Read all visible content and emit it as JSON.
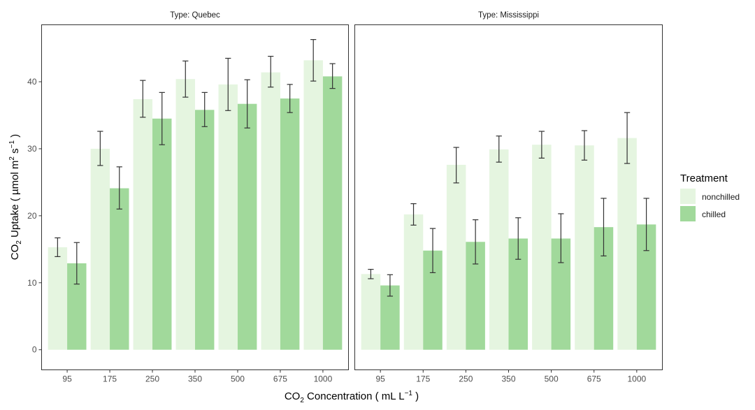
{
  "chart_data": {
    "type": "bar",
    "facets": [
      {
        "strip_label": "Type: Quebec",
        "categories": [
          "95",
          "175",
          "250",
          "350",
          "500",
          "675",
          "1000"
        ],
        "series": [
          {
            "name": "nonchilled",
            "values": [
              15.3,
              30.0,
              37.4,
              40.4,
              39.6,
              41.4,
              43.2
            ],
            "error_low": [
              13.9,
              27.5,
              34.7,
              37.7,
              35.7,
              39.2,
              40.1
            ],
            "error_high": [
              16.7,
              32.6,
              40.2,
              43.1,
              43.5,
              43.8,
              46.3
            ]
          },
          {
            "name": "chilled",
            "values": [
              12.9,
              24.1,
              34.5,
              35.8,
              36.7,
              37.5,
              40.8
            ],
            "error_low": [
              9.8,
              21.0,
              30.6,
              33.3,
              33.1,
              35.4,
              39.0
            ],
            "error_high": [
              16.0,
              27.3,
              38.4,
              38.4,
              40.3,
              39.6,
              42.7
            ]
          }
        ]
      },
      {
        "strip_label": "Type: Mississippi",
        "categories": [
          "95",
          "175",
          "250",
          "350",
          "500",
          "675",
          "1000"
        ],
        "series": [
          {
            "name": "nonchilled",
            "values": [
              11.3,
              20.2,
              27.6,
              29.9,
              30.6,
              30.5,
              31.6
            ],
            "error_low": [
              10.6,
              18.6,
              24.9,
              28.0,
              28.6,
              28.3,
              27.8
            ],
            "error_high": [
              12.0,
              21.8,
              30.2,
              31.9,
              32.6,
              32.7,
              35.4
            ]
          },
          {
            "name": "chilled",
            "values": [
              9.6,
              14.8,
              16.1,
              16.6,
              16.6,
              18.3,
              18.7
            ],
            "error_low": [
              8.0,
              11.5,
              12.8,
              13.5,
              13.0,
              14.0,
              14.8
            ],
            "error_high": [
              11.2,
              18.1,
              19.4,
              19.7,
              20.3,
              22.6,
              22.6
            ]
          }
        ]
      }
    ],
    "ylim": [
      -3,
      48.5
    ],
    "yticks": [
      0,
      10,
      20,
      30,
      40
    ],
    "xlabel": {
      "main": "CO",
      "sub": "2",
      "rest": " Concentration ( mL L",
      "sup": "−1",
      "end": " )"
    },
    "ylabel": {
      "main": "CO",
      "sub": "2",
      "mid": " Uptake ( µmol m",
      "sup1": "2",
      "mid2": " s",
      "sup2": "−1",
      "end": " )"
    },
    "legend": {
      "title": "Treatment",
      "position": "right",
      "entries": [
        {
          "label": "nonchilled",
          "color": "#e5f5e0"
        },
        {
          "label": "chilled",
          "color": "#a1d99b"
        }
      ]
    },
    "grid": false
  }
}
